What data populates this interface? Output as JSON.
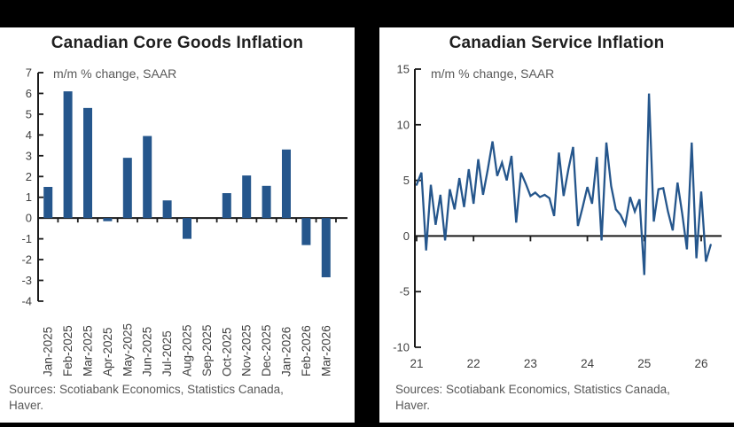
{
  "colors": {
    "accent": "#25568C",
    "axis": "#1A1A1A",
    "tick_text": "#3F3F3F",
    "muted_text": "#595959",
    "panel_bg": "#FFFFFF",
    "frame_bg": "#000000"
  },
  "chart_data": [
    {
      "type": "bar",
      "title": "Canadian Core Goods Inflation",
      "subtitle": "m/m % change, SAAR",
      "categories": [
        "Jan-2025",
        "Feb-2025",
        "Mar-2025",
        "Apr-2025",
        "May-2025",
        "Jun-2025",
        "Jul-2025",
        "Aug-2025",
        "Sep-2025",
        "Oct-2025",
        "Nov-2025",
        "Dec-2025",
        "Jan-2026",
        "Feb-2026",
        "Mar-2026"
      ],
      "values": [
        1.5,
        6.1,
        5.3,
        -0.15,
        2.9,
        3.95,
        0.85,
        -1.0,
        0,
        1.2,
        2.05,
        1.55,
        3.3,
        -1.3,
        -2.85
      ],
      "ylim": [
        -4,
        7
      ],
      "yticks": [
        7,
        6,
        5,
        4,
        3,
        2,
        1,
        0,
        -1,
        -2,
        -3,
        -4
      ],
      "grid": false,
      "legend": "none",
      "source_lines": [
        "Sources: Scotiabank Economics, Statistics Canada,",
        "Haver."
      ]
    },
    {
      "type": "line",
      "title": "Canadian Service Inflation",
      "subtitle": "m/m % change, SAAR",
      "x_start": "Jan-2021",
      "x_end": "Mar-2026",
      "xtick_labels": [
        "21",
        "22",
        "23",
        "24",
        "25",
        "26"
      ],
      "values": [
        4.6,
        5.7,
        -1.3,
        4.6,
        1.0,
        3.7,
        -0.4,
        4.2,
        2.4,
        5.2,
        2.6,
        6.0,
        2.9,
        6.9,
        3.7,
        6.0,
        8.5,
        5.4,
        6.6,
        5.0,
        7.2,
        1.2,
        5.7,
        4.7,
        3.6,
        3.9,
        3.5,
        3.7,
        3.4,
        1.8,
        7.5,
        3.6,
        6.0,
        8.0,
        0.9,
        2.6,
        4.4,
        2.9,
        7.1,
        -0.4,
        8.4,
        4.5,
        2.4,
        1.9,
        1.0,
        3.5,
        2.2,
        3.3,
        -3.5,
        12.8,
        1.3,
        4.2,
        4.3,
        2.2,
        0.5,
        4.8,
        2.0,
        -1.2,
        8.4,
        -2.0,
        4.0,
        -2.3,
        -0.8
      ],
      "ylim": [
        -10,
        15
      ],
      "yticks": [
        15,
        10,
        5,
        0,
        -5,
        -10
      ],
      "grid": false,
      "legend": "none",
      "source_lines": [
        "Sources: Scotiabank Economics, Statistics Canada,",
        "Haver."
      ]
    }
  ]
}
